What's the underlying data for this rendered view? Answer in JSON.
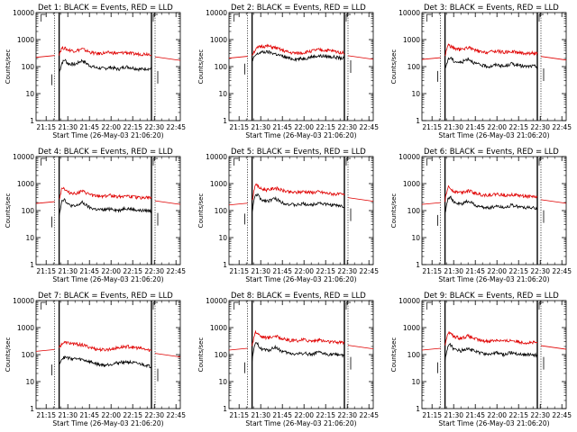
{
  "colors": {
    "events": "#000000",
    "lld": "#e00000",
    "axis": "#000000",
    "background": "#ffffff"
  },
  "chart_data": [
    {
      "type": "line",
      "detector": 1,
      "title": "Det 1: BLACK = Events, RED = LLD",
      "xlabel": "Start Time (26-May-03 21:06:20)",
      "ylabel": "Counts/sec",
      "ylim": [
        1,
        10000
      ],
      "xlim": [
        "21:08",
        "22:48"
      ],
      "y_scale": "log",
      "x_ticks": [
        "21:15",
        "21:30",
        "21:45",
        "22:00",
        "22:15",
        "22:30",
        "22:45"
      ],
      "y_ticks": [
        "1",
        "10",
        "100",
        "1000",
        "10000"
      ],
      "series": [
        {
          "name": "Events",
          "color": "#000000",
          "x": [
            "21:24",
            "21:26",
            "21:28",
            "21:30",
            "21:35",
            "21:40",
            "21:45",
            "21:50",
            "21:55",
            "22:00",
            "22:05",
            "22:10",
            "22:15",
            "22:20",
            "22:25",
            "22:28"
          ],
          "y": [
            60,
            140,
            180,
            130,
            120,
            170,
            110,
            90,
            85,
            95,
            80,
            100,
            90,
            80,
            85,
            80
          ]
        },
        {
          "name": "LLD",
          "color": "#e00000",
          "x": [
            "21:24",
            "21:26",
            "21:28",
            "21:30",
            "21:35",
            "21:40",
            "21:45",
            "21:50",
            "21:55",
            "22:00",
            "22:05",
            "22:10",
            "22:15",
            "22:20",
            "22:25",
            "22:28"
          ],
          "y": [
            300,
            500,
            480,
            420,
            380,
            450,
            350,
            300,
            320,
            330,
            310,
            340,
            300,
            290,
            300,
            290
          ]
        }
      ]
    },
    {
      "type": "line",
      "detector": 2,
      "title": "Det 2: BLACK = Events, RED = LLD",
      "xlabel": "Start Time (26-May-03 21:06:20)",
      "ylabel": "Counts/sec",
      "ylim": [
        1,
        10000
      ],
      "xlim": [
        "21:08",
        "22:48"
      ],
      "y_scale": "log",
      "x_ticks": [
        "21:15",
        "21:30",
        "21:45",
        "22:00",
        "22:15",
        "22:30",
        "22:45"
      ],
      "y_ticks": [
        "1",
        "10",
        "100",
        "1000",
        "10000"
      ],
      "series": [
        {
          "name": "Events",
          "color": "#000000",
          "x": [
            "21:24",
            "21:26",
            "21:28",
            "21:30",
            "21:35",
            "21:40",
            "21:45",
            "21:50",
            "21:55",
            "22:00",
            "22:05",
            "22:10",
            "22:15",
            "22:20",
            "22:25",
            "22:28"
          ],
          "y": [
            150,
            250,
            300,
            340,
            350,
            300,
            240,
            200,
            190,
            200,
            230,
            250,
            240,
            230,
            210,
            200
          ]
        },
        {
          "name": "LLD",
          "color": "#e00000",
          "x": [
            "21:24",
            "21:26",
            "21:28",
            "21:30",
            "21:35",
            "21:40",
            "21:45",
            "21:50",
            "21:55",
            "22:00",
            "22:05",
            "22:10",
            "22:15",
            "22:20",
            "22:25",
            "22:28"
          ],
          "y": [
            280,
            400,
            500,
            560,
            570,
            500,
            400,
            330,
            310,
            330,
            380,
            420,
            400,
            380,
            340,
            320
          ]
        }
      ]
    },
    {
      "type": "line",
      "detector": 3,
      "title": "Det 3: BLACK = Events, RED = LLD",
      "xlabel": "Start Time (26-May-03 21:06:20)",
      "ylabel": "Counts/sec",
      "ylim": [
        1,
        10000
      ],
      "xlim": [
        "21:08",
        "22:48"
      ],
      "y_scale": "log",
      "x_ticks": [
        "21:15",
        "21:30",
        "21:45",
        "22:00",
        "22:15",
        "22:30",
        "22:45"
      ],
      "y_ticks": [
        "1",
        "10",
        "100",
        "1000",
        "10000"
      ],
      "series": [
        {
          "name": "Events",
          "color": "#000000",
          "x": [
            "21:24",
            "21:26",
            "21:28",
            "21:30",
            "21:35",
            "21:40",
            "21:45",
            "21:50",
            "21:55",
            "22:00",
            "22:05",
            "22:10",
            "22:15",
            "22:20",
            "22:25",
            "22:28"
          ],
          "y": [
            80,
            180,
            220,
            160,
            140,
            200,
            130,
            110,
            100,
            120,
            100,
            130,
            110,
            100,
            105,
            100
          ]
        },
        {
          "name": "LLD",
          "color": "#e00000",
          "x": [
            "21:24",
            "21:26",
            "21:28",
            "21:30",
            "21:35",
            "21:40",
            "21:45",
            "21:50",
            "21:55",
            "22:00",
            "22:05",
            "22:10",
            "22:15",
            "22:20",
            "22:25",
            "22:28"
          ],
          "y": [
            250,
            650,
            560,
            480,
            420,
            520,
            400,
            330,
            350,
            380,
            340,
            370,
            330,
            310,
            320,
            300
          ]
        }
      ]
    },
    {
      "type": "line",
      "detector": 4,
      "title": "Det 4: BLACK = Events, RED = LLD",
      "xlabel": "Start Time (26-May-03 21:06:20)",
      "ylabel": "Counts/sec",
      "ylim": [
        1,
        10000
      ],
      "xlim": [
        "21:08",
        "22:48"
      ],
      "y_scale": "log",
      "x_ticks": [
        "21:15",
        "21:30",
        "21:45",
        "22:00",
        "22:15",
        "22:30",
        "22:45"
      ],
      "y_ticks": [
        "1",
        "10",
        "100",
        "1000",
        "10000"
      ],
      "series": [
        {
          "name": "Events",
          "color": "#000000",
          "x": [
            "21:24",
            "21:26",
            "21:28",
            "21:30",
            "21:35",
            "21:40",
            "21:45",
            "21:50",
            "21:55",
            "22:00",
            "22:05",
            "22:10",
            "22:15",
            "22:20",
            "22:25",
            "22:28"
          ],
          "y": [
            70,
            250,
            260,
            170,
            140,
            200,
            130,
            110,
            105,
            120,
            100,
            125,
            110,
            100,
            100,
            95
          ]
        },
        {
          "name": "LLD",
          "color": "#e00000",
          "x": [
            "21:24",
            "21:26",
            "21:28",
            "21:30",
            "21:35",
            "21:40",
            "21:45",
            "21:50",
            "21:55",
            "22:00",
            "22:05",
            "22:10",
            "22:15",
            "22:20",
            "22:25",
            "22:28"
          ],
          "y": [
            250,
            750,
            620,
            480,
            430,
            520,
            400,
            340,
            350,
            370,
            330,
            360,
            320,
            300,
            310,
            290
          ]
        }
      ]
    },
    {
      "type": "line",
      "detector": 5,
      "title": "Det 5: BLACK = Events, RED = LLD",
      "xlabel": "Start Time (26-May-03 21:06:20)",
      "ylabel": "Counts/sec",
      "ylim": [
        1,
        10000
      ],
      "xlim": [
        "21:08",
        "22:48"
      ],
      "y_scale": "log",
      "x_ticks": [
        "21:15",
        "21:30",
        "21:45",
        "22:00",
        "22:15",
        "22:30",
        "22:45"
      ],
      "y_ticks": [
        "1",
        "10",
        "100",
        "1000",
        "10000"
      ],
      "series": [
        {
          "name": "Events",
          "color": "#000000",
          "x": [
            "21:24",
            "21:26",
            "21:28",
            "21:30",
            "21:35",
            "21:40",
            "21:45",
            "21:50",
            "21:55",
            "22:00",
            "22:05",
            "22:10",
            "22:15",
            "22:20",
            "22:25",
            "22:28"
          ],
          "y": [
            90,
            350,
            400,
            250,
            230,
            280,
            200,
            170,
            160,
            180,
            160,
            200,
            170,
            160,
            150,
            140
          ]
        },
        {
          "name": "LLD",
          "color": "#e00000",
          "x": [
            "21:24",
            "21:26",
            "21:28",
            "21:30",
            "21:35",
            "21:40",
            "21:45",
            "21:50",
            "21:55",
            "22:00",
            "22:05",
            "22:10",
            "22:15",
            "22:20",
            "22:25",
            "22:28"
          ],
          "y": [
            220,
            900,
            800,
            650,
            580,
            700,
            560,
            480,
            470,
            520,
            470,
            500,
            450,
            420,
            400,
            380
          ]
        }
      ]
    },
    {
      "type": "line",
      "detector": 6,
      "title": "Det 6: BLACK = Events, RED = LLD",
      "xlabel": "Start Time (26-May-03 21:06:20)",
      "ylabel": "Counts/sec",
      "ylim": [
        1,
        10000
      ],
      "xlim": [
        "21:08",
        "22:48"
      ],
      "y_scale": "log",
      "x_ticks": [
        "21:15",
        "21:30",
        "21:45",
        "22:00",
        "22:15",
        "22:30",
        "22:45"
      ],
      "y_ticks": [
        "1",
        "10",
        "100",
        "1000",
        "10000"
      ],
      "series": [
        {
          "name": "Events",
          "color": "#000000",
          "x": [
            "21:24",
            "21:26",
            "21:28",
            "21:30",
            "21:35",
            "21:40",
            "21:45",
            "21:50",
            "21:55",
            "22:00",
            "22:05",
            "22:10",
            "22:15",
            "22:20",
            "22:25",
            "22:28"
          ],
          "y": [
            80,
            300,
            320,
            200,
            170,
            230,
            160,
            130,
            130,
            150,
            130,
            160,
            140,
            130,
            125,
            120
          ]
        },
        {
          "name": "LLD",
          "color": "#e00000",
          "x": [
            "21:24",
            "21:26",
            "21:28",
            "21:30",
            "21:35",
            "21:40",
            "21:45",
            "21:50",
            "21:55",
            "22:00",
            "22:05",
            "22:10",
            "22:15",
            "22:20",
            "22:25",
            "22:28"
          ],
          "y": [
            230,
            750,
            650,
            530,
            470,
            560,
            440,
            380,
            380,
            410,
            370,
            400,
            360,
            340,
            330,
            320
          ]
        }
      ]
    },
    {
      "type": "line",
      "detector": 7,
      "title": "Det 7: BLACK = Events, RED = LLD",
      "xlabel": "Start Time (26-May-03 21:06:20)",
      "ylabel": "Counts/sec",
      "ylim": [
        1,
        10000
      ],
      "xlim": [
        "21:08",
        "22:48"
      ],
      "y_scale": "log",
      "x_ticks": [
        "21:15",
        "21:30",
        "21:45",
        "22:00",
        "22:15",
        "22:30",
        "22:45"
      ],
      "y_ticks": [
        "1",
        "10",
        "100",
        "1000",
        "10000"
      ],
      "series": [
        {
          "name": "Events",
          "color": "#000000",
          "x": [
            "21:24",
            "21:26",
            "21:28",
            "21:30",
            "21:35",
            "21:40",
            "21:45",
            "21:50",
            "21:55",
            "22:00",
            "22:05",
            "22:10",
            "22:15",
            "22:20",
            "22:25",
            "22:28"
          ],
          "y": [
            50,
            70,
            80,
            75,
            70,
            65,
            55,
            45,
            40,
            45,
            50,
            55,
            50,
            45,
            40,
            35
          ]
        },
        {
          "name": "LLD",
          "color": "#e00000",
          "x": [
            "21:24",
            "21:26",
            "21:28",
            "21:30",
            "21:35",
            "21:40",
            "21:45",
            "21:50",
            "21:55",
            "22:00",
            "22:05",
            "22:10",
            "22:15",
            "22:20",
            "22:25",
            "22:28"
          ],
          "y": [
            180,
            260,
            280,
            270,
            250,
            230,
            190,
            160,
            150,
            160,
            180,
            200,
            190,
            170,
            150,
            140
          ]
        }
      ]
    },
    {
      "type": "line",
      "detector": 8,
      "title": "Det 8: BLACK = Events, RED = LLD",
      "xlabel": "Start Time (26-May-03 21:06:20)",
      "ylabel": "Counts/sec",
      "ylim": [
        1,
        10000
      ],
      "xlim": [
        "21:08",
        "22:48"
      ],
      "y_scale": "log",
      "x_ticks": [
        "21:15",
        "21:30",
        "21:45",
        "22:00",
        "22:15",
        "22:30",
        "22:45"
      ],
      "y_ticks": [
        "1",
        "10",
        "100",
        "1000",
        "10000"
      ],
      "series": [
        {
          "name": "Events",
          "color": "#000000",
          "x": [
            "21:24",
            "21:26",
            "21:28",
            "21:30",
            "21:35",
            "21:40",
            "21:45",
            "21:50",
            "21:55",
            "22:00",
            "22:05",
            "22:10",
            "22:15",
            "22:20",
            "22:25",
            "22:28"
          ],
          "y": [
            60,
            250,
            240,
            170,
            140,
            190,
            130,
            110,
            105,
            115,
            100,
            120,
            105,
            100,
            100,
            95
          ]
        },
        {
          "name": "LLD",
          "color": "#e00000",
          "x": [
            "21:24",
            "21:26",
            "21:28",
            "21:30",
            "21:35",
            "21:40",
            "21:45",
            "21:50",
            "21:55",
            "22:00",
            "22:05",
            "22:10",
            "22:15",
            "22:20",
            "22:25",
            "22:28"
          ],
          "y": [
            200,
            700,
            620,
            480,
            420,
            500,
            390,
            330,
            330,
            360,
            320,
            350,
            310,
            290,
            290,
            280
          ]
        }
      ]
    },
    {
      "type": "line",
      "detector": 9,
      "title": "Det 9: BLACK = Events, RED = LLD",
      "xlabel": "Start Time (26-May-03 21:06:20)",
      "ylabel": "Counts/sec",
      "ylim": [
        1,
        10000
      ],
      "xlim": [
        "21:08",
        "22:48"
      ],
      "y_scale": "log",
      "x_ticks": [
        "21:15",
        "21:30",
        "21:45",
        "22:00",
        "22:15",
        "22:30",
        "22:45"
      ],
      "y_ticks": [
        "1",
        "10",
        "100",
        "1000",
        "10000"
      ],
      "series": [
        {
          "name": "Events",
          "color": "#000000",
          "x": [
            "21:24",
            "21:26",
            "21:28",
            "21:30",
            "21:35",
            "21:40",
            "21:45",
            "21:50",
            "21:55",
            "22:00",
            "22:05",
            "22:10",
            "22:15",
            "22:20",
            "22:25",
            "22:28"
          ],
          "y": [
            60,
            220,
            230,
            160,
            140,
            180,
            130,
            110,
            105,
            115,
            100,
            120,
            105,
            100,
            100,
            95
          ]
        },
        {
          "name": "LLD",
          "color": "#e00000",
          "x": [
            "21:24",
            "21:26",
            "21:28",
            "21:30",
            "21:35",
            "21:40",
            "21:45",
            "21:50",
            "21:55",
            "22:00",
            "22:05",
            "22:10",
            "22:15",
            "22:20",
            "22:25",
            "22:28"
          ],
          "y": [
            200,
            680,
            600,
            470,
            410,
            490,
            380,
            320,
            320,
            350,
            310,
            340,
            300,
            280,
            280,
            270
          ]
        }
      ]
    }
  ]
}
